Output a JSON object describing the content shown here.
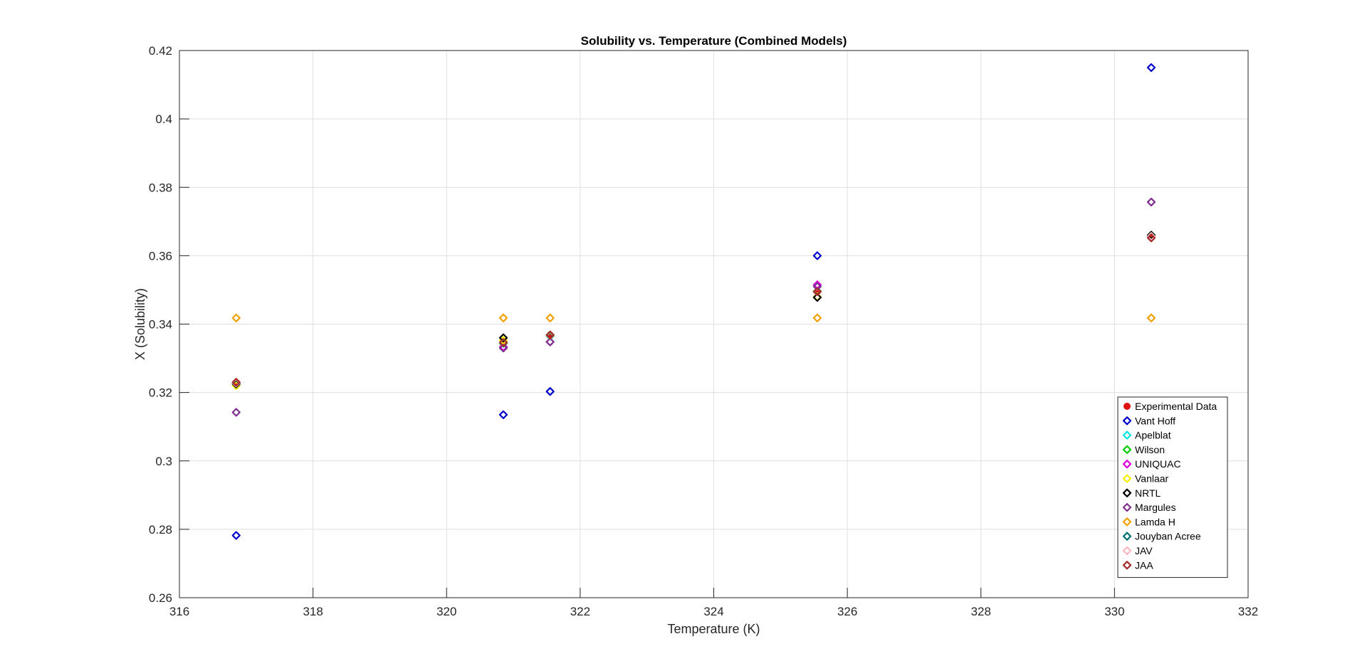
{
  "chart_data": {
    "type": "scatter",
    "title": "Solubility vs. Temperature (Combined Models)",
    "xlabel": "Temperature (K)",
    "ylabel": "X (Solubility)",
    "xlim": [
      316,
      332
    ],
    "ylim": [
      0.26,
      0.42
    ],
    "xticks": [
      316,
      318,
      320,
      322,
      324,
      326,
      328,
      330,
      332
    ],
    "yticks": [
      0.26,
      0.28,
      0.3,
      0.32,
      0.34,
      0.36,
      0.38,
      0.4,
      0.42
    ],
    "xtick_labels": [
      "316",
      "318",
      "320",
      "322",
      "324",
      "326",
      "328",
      "330",
      "332"
    ],
    "ytick_labels": [
      "0.26",
      "0.28",
      "0.3",
      "0.32",
      "0.34",
      "0.36",
      "0.38",
      "0.4",
      "0.42"
    ],
    "grid": true,
    "legend_position": "bottom-right",
    "x": [
      316.85,
      320.85,
      321.55,
      325.55,
      330.55
    ],
    "series": [
      {
        "name": "Experimental Data",
        "color": "#e01010",
        "marker": "filled-circle",
        "values": [
          0.3228,
          0.3345,
          0.3368,
          0.3495,
          0.3658
        ]
      },
      {
        "name": "Vant Hoff",
        "color": "#0000cc",
        "marker": "diamond",
        "values": [
          0.2782,
          0.3135,
          0.3203,
          0.36,
          0.415
        ]
      },
      {
        "name": "Apelblat",
        "color": "#00e5e5",
        "marker": "diamond",
        "values": [
          0.3225,
          0.3345,
          0.3365,
          0.3495,
          0.3655
        ]
      },
      {
        "name": "Wilson",
        "color": "#00cc00",
        "marker": "diamond",
        "values": [
          0.3226,
          0.3344,
          0.3366,
          0.3496,
          0.3656
        ]
      },
      {
        "name": "UNIQUAC",
        "color": "#e000e0",
        "marker": "diamond",
        "values": [
          0.3228,
          0.3333,
          0.3348,
          0.3515,
          0.3655
        ]
      },
      {
        "name": "Vanlaar",
        "color": "#f5f000",
        "marker": "diamond",
        "values": [
          0.322,
          0.3352,
          0.3368,
          0.348,
          0.366
        ]
      },
      {
        "name": "NRTL",
        "color": "#000000",
        "marker": "diamond",
        "values": [
          0.3225,
          0.336,
          0.3368,
          0.3478,
          0.366
        ]
      },
      {
        "name": "Margules",
        "color": "#7e2f8e",
        "marker": "diamond",
        "values": [
          0.3142,
          0.333,
          0.3348,
          0.351,
          0.3757
        ]
      },
      {
        "name": "Lamda H",
        "color": "#f0a000",
        "marker": "diamond",
        "values": [
          0.3418,
          0.3418,
          0.3418,
          0.3418,
          0.3418
        ]
      },
      {
        "name": "Jouyban Acree",
        "color": "#007070",
        "marker": "diamond",
        "values": [
          0.3228,
          0.3345,
          0.3367,
          0.3495,
          0.3657
        ]
      },
      {
        "name": "JAV",
        "color": "#ffb6c1",
        "marker": "diamond",
        "values": [
          0.3228,
          0.3346,
          0.3367,
          0.3494,
          0.3656
        ]
      },
      {
        "name": "JAA",
        "color": "#a52a2a",
        "marker": "diamond",
        "values": [
          0.323,
          0.3346,
          0.3368,
          0.3495,
          0.3652
        ]
      }
    ]
  }
}
